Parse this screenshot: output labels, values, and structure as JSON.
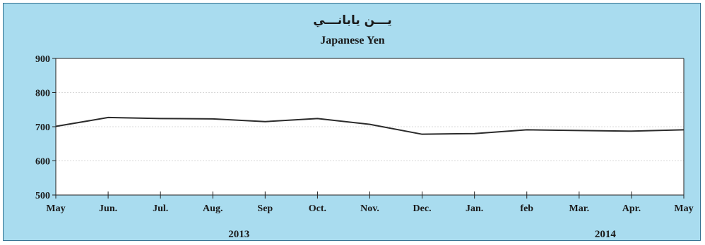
{
  "chart_data": {
    "type": "line",
    "title_ar": "يـــن يابانـــي",
    "title": "Japanese Yen",
    "categories": [
      "May",
      "Jun.",
      "Jul.",
      "Aug.",
      "Sep",
      "Oct.",
      "Nov.",
      "Dec.",
      "Jan.",
      "feb",
      "Mar.",
      "Apr.",
      "May"
    ],
    "series": [
      {
        "values": [
          701,
          727,
          724,
          723,
          715,
          724,
          707,
          678,
          680,
          691,
          689,
          687,
          691
        ]
      }
    ],
    "ylim": [
      500,
      900
    ],
    "yticks": [
      500,
      600,
      700,
      800,
      900
    ],
    "years": [
      {
        "label": "2013",
        "center_index": 3.5
      },
      {
        "label": "2014",
        "center_index": 10.5
      }
    ],
    "grid": true,
    "colors": {
      "frame_bg": "#a9dcef",
      "plot_bg": "#ffffff",
      "line": "#2b2b2b",
      "grid": "#d8d8d8"
    }
  }
}
